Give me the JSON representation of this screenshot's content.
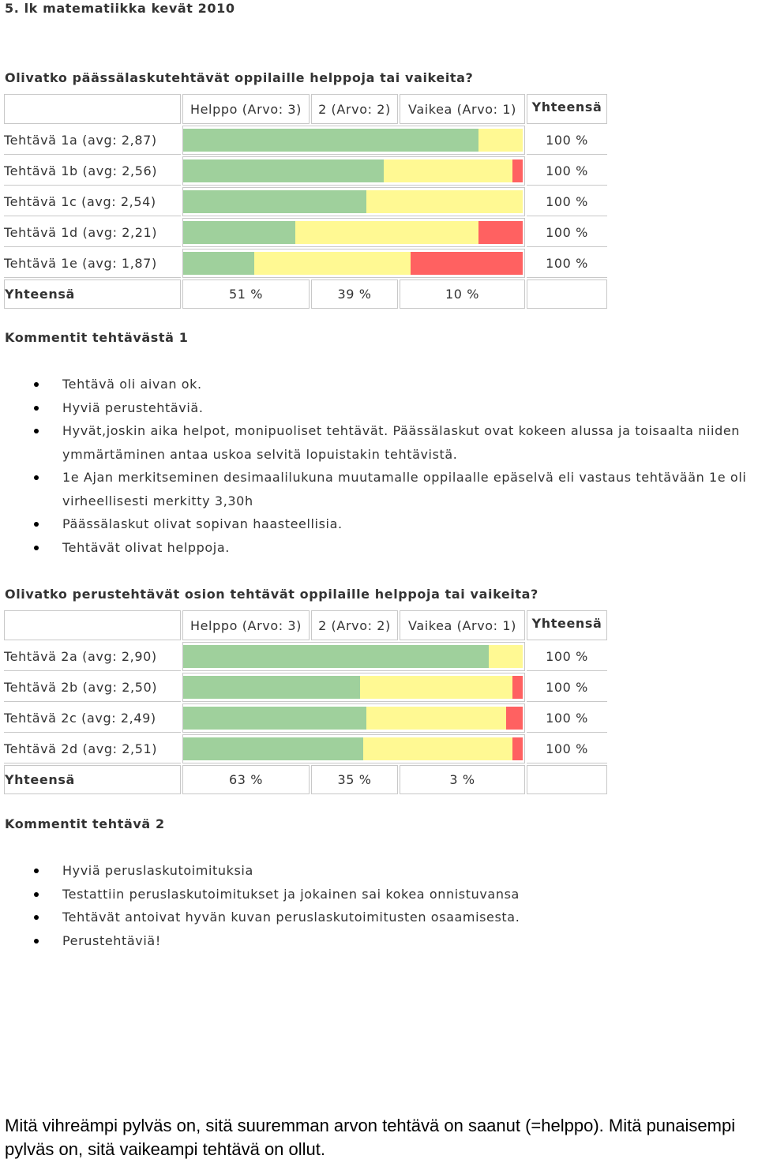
{
  "page_title": "5. lk matematiikka kevät 2010",
  "section1": {
    "question": "Olivatko päässälaskutehtävät oppilaille helppoja tai vaikeita?",
    "headers": [
      "Helppo (Arvo: 3)",
      "2 (Arvo: 2)",
      "Vaikea (Arvo: 1)"
    ],
    "total_header": "Yhteensä",
    "rows": [
      {
        "label": "Tehtävä 1a (avg: 2,87)",
        "easy": 87,
        "mid": 13,
        "hard": 0,
        "total": "100 %"
      },
      {
        "label": "Tehtävä 1b (avg: 2,56)",
        "easy": 59,
        "mid": 38,
        "hard": 3,
        "total": "100 %"
      },
      {
        "label": "Tehtävä 1c (avg: 2,54)",
        "easy": 54,
        "mid": 46,
        "hard": 0,
        "total": "100 %"
      },
      {
        "label": "Tehtävä 1d (avg: 2,21)",
        "easy": 33,
        "mid": 54,
        "hard": 13,
        "total": "100 %"
      },
      {
        "label": "Tehtävä 1e (avg: 1,87)",
        "easy": 21,
        "mid": 46,
        "hard": 33,
        "total": "100 %"
      }
    ],
    "totals_label": "Yhteensä",
    "totals": [
      "51 %",
      "39 %",
      "10 %"
    ]
  },
  "comments1": {
    "title": "Kommentit tehtävästä 1",
    "items": [
      "Tehtävä oli aivan ok.",
      "Hyviä perustehtäviä.",
      "Hyvät,joskin aika helpot, monipuoliset tehtävät. Päässälaskut ovat kokeen alussa ja toisaalta niiden ymmärtäminen antaa uskoa selvitä lopuistakin tehtävistä.",
      "1e Ajan merkitseminen desimaalilukuna muutamalle oppilaalle epäselvä eli vastaus tehtävään 1e oli virheellisesti merkitty 3,30h",
      "Päässälaskut olivat sopivan haasteellisia.",
      "Tehtävät olivat helppoja."
    ]
  },
  "section2": {
    "question": "Olivatko perustehtävät osion tehtävät oppilaille helppoja tai vaikeita?",
    "headers": [
      "Helppo (Arvo: 3)",
      "2 (Arvo: 2)",
      "Vaikea (Arvo: 1)"
    ],
    "total_header": "Yhteensä",
    "rows": [
      {
        "label": "Tehtävä 2a (avg: 2,90)",
        "easy": 90,
        "mid": 10,
        "hard": 0,
        "total": "100 %"
      },
      {
        "label": "Tehtävä 2b (avg: 2,50)",
        "easy": 52,
        "mid": 45,
        "hard": 3,
        "total": "100 %"
      },
      {
        "label": "Tehtävä 2c (avg: 2,49)",
        "easy": 54,
        "mid": 41,
        "hard": 5,
        "total": "100 %"
      },
      {
        "label": "Tehtävä 2d (avg: 2,51)",
        "easy": 53,
        "mid": 44,
        "hard": 3,
        "total": "100 %"
      }
    ],
    "totals_label": "Yhteensä",
    "totals": [
      "63 %",
      "35 %",
      "3 %"
    ]
  },
  "comments2": {
    "title": "Kommentit tehtävä 2",
    "items": [
      "Hyviä peruslaskutoimituksia",
      "Testattiin peruslaskutoimitukset ja jokainen sai kokea onnistuvansa",
      "Tehtävät antoivat hyvän kuvan peruslaskutoimitusten osaamisesta.",
      "Perustehtäviä!"
    ]
  },
  "footer_note": "Mitä vihreämpi pylväs on, sitä suuremman arvon tehtävä on saanut (=helppo). Mitä punaisempi pylväs on, sitä vaikeampi tehtävä on ollut.",
  "colors": {
    "easy": "#9fd09c",
    "mid": "#fff993",
    "hard": "#ff6161"
  }
}
